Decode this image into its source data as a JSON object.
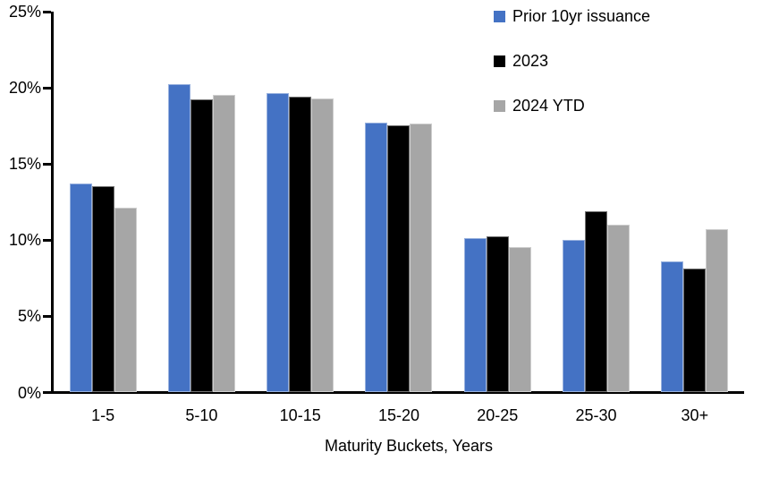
{
  "chart_data": {
    "type": "bar",
    "title": "",
    "xlabel": "Maturity Buckets, Years",
    "ylabel": "",
    "ylim": [
      0,
      25
    ],
    "grid": false,
    "legend_position": "top-right",
    "y_ticks": [
      "0%",
      "5%",
      "10%",
      "15%",
      "20%",
      "25%"
    ],
    "y_tick_values": [
      0,
      5,
      10,
      15,
      20,
      25
    ],
    "categories": [
      "1-5",
      "5-10",
      "10-15",
      "15-20",
      "20-25",
      "25-30",
      "30+"
    ],
    "series": [
      {
        "name": "Prior 10yr issuance",
        "color": "#4472C4",
        "values": [
          13.7,
          20.2,
          19.6,
          17.7,
          10.1,
          10.0,
          8.6
        ]
      },
      {
        "name": "2023",
        "color": "#000000",
        "values": [
          13.5,
          19.2,
          19.4,
          17.5,
          10.2,
          11.9,
          8.1
        ]
      },
      {
        "name": "2024 YTD",
        "color": "#A6A6A6",
        "values": [
          12.1,
          19.5,
          19.3,
          17.6,
          9.5,
          11.0,
          10.7
        ]
      }
    ]
  }
}
